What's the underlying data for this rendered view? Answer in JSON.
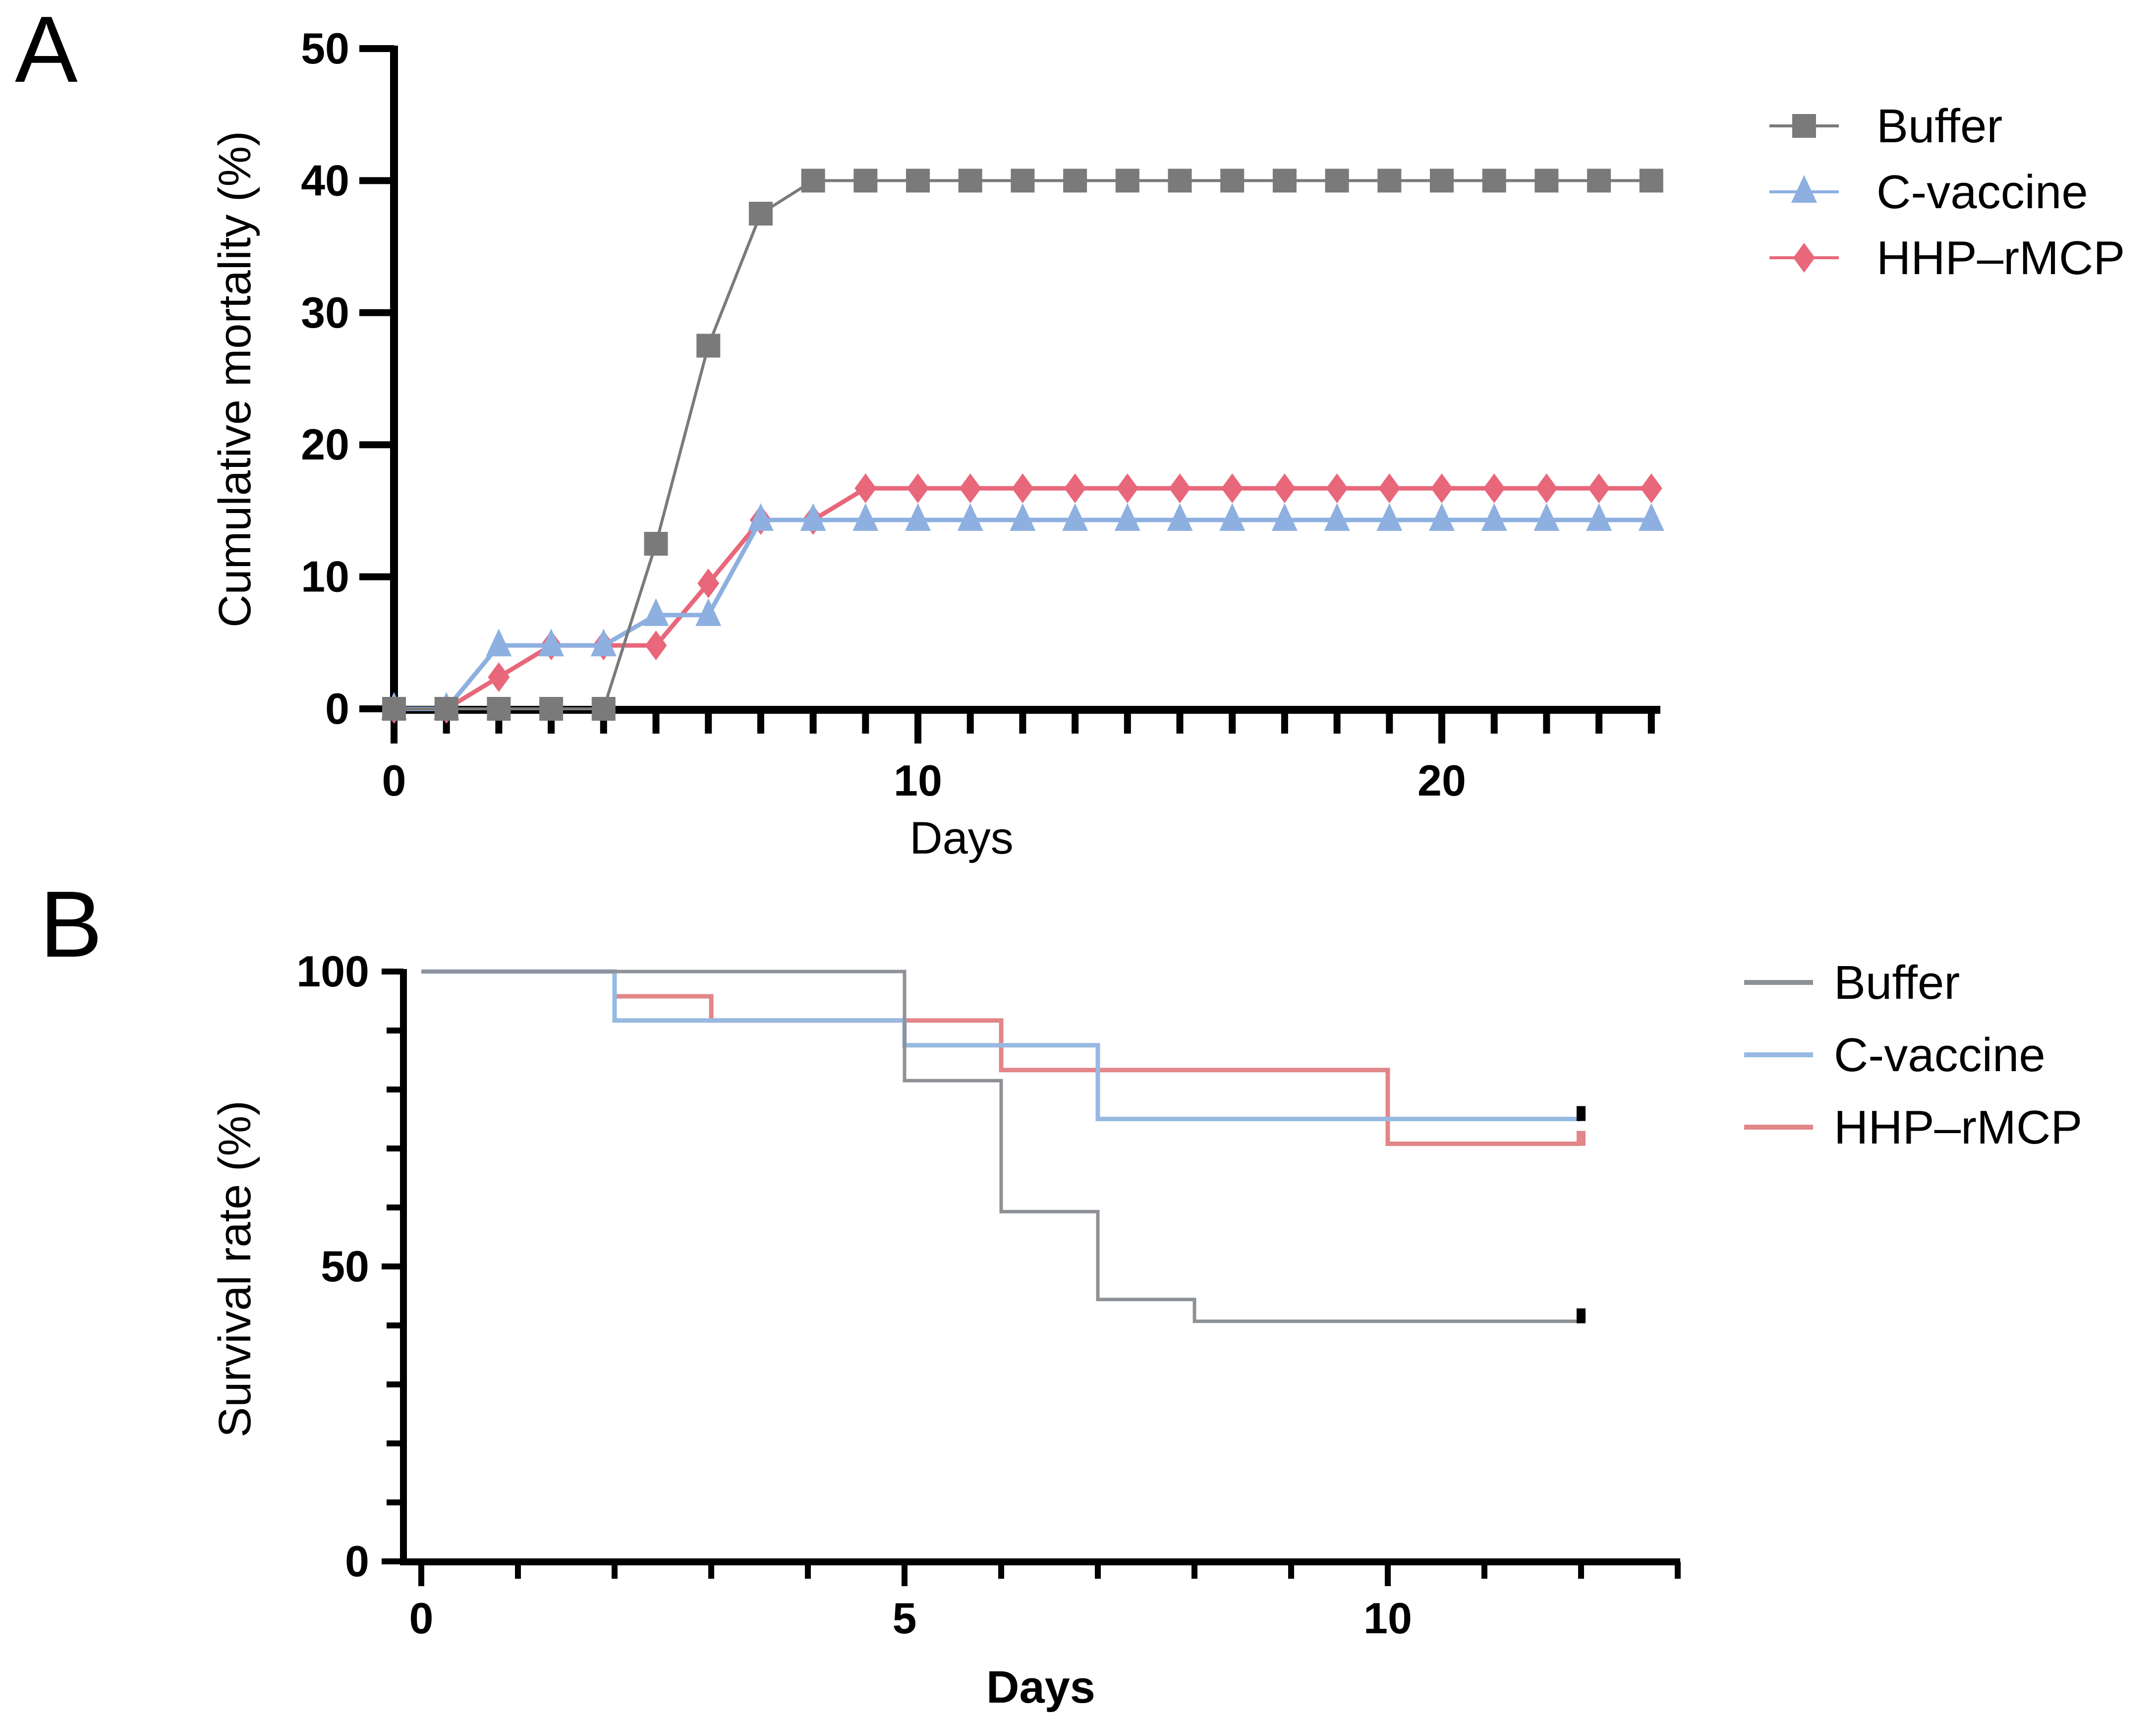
{
  "chart_data": [
    {
      "panel_label": "A",
      "type": "line",
      "xlabel": "Days",
      "ylabel": "Cumulative mortality (%)",
      "xlim": [
        0,
        24
      ],
      "ylim": [
        0,
        50
      ],
      "xticks": [
        0,
        10,
        20
      ],
      "yticks": [
        0,
        10,
        20,
        30,
        40,
        50
      ],
      "legend": "top-right",
      "x": [
        0,
        1,
        2,
        3,
        4,
        5,
        6,
        7,
        8,
        9,
        10,
        11,
        12,
        13,
        14,
        15,
        16,
        17,
        18,
        19,
        20,
        21,
        22,
        23,
        24
      ],
      "series": [
        {
          "name": "Buffer",
          "color": "#7a7a7a",
          "marker": "square",
          "values": [
            0,
            0,
            0,
            0,
            0,
            12.5,
            27.5,
            37.5,
            40,
            40,
            40,
            40,
            40,
            40,
            40,
            40,
            40,
            40,
            40,
            40,
            40,
            40,
            40,
            40,
            40
          ]
        },
        {
          "name": "C-vaccine",
          "color": "#8db0e0",
          "marker": "triangle",
          "values": [
            0,
            0,
            4.8,
            4.8,
            4.8,
            7.1,
            7.1,
            14.3,
            14.3,
            14.3,
            14.3,
            14.3,
            14.3,
            14.3,
            14.3,
            14.3,
            14.3,
            14.3,
            14.3,
            14.3,
            14.3,
            14.3,
            14.3,
            14.3,
            14.3
          ]
        },
        {
          "name": "HHP–rMCP",
          "color": "#e8677a",
          "marker": "diamond",
          "values": [
            0,
            0,
            2.4,
            4.8,
            4.8,
            4.8,
            9.5,
            14.3,
            14.3,
            16.7,
            16.7,
            16.7,
            16.7,
            16.7,
            16.7,
            16.7,
            16.7,
            16.7,
            16.7,
            16.7,
            16.7,
            16.7,
            16.7,
            16.7,
            16.7
          ]
        }
      ]
    },
    {
      "panel_label": "B",
      "type": "line",
      "style": "step",
      "xlabel": "Days",
      "ylabel": "Survival rate (%)",
      "xlim": [
        0,
        13
      ],
      "ylim": [
        0,
        100
      ],
      "xticks": [
        0,
        5,
        10
      ],
      "yticks": [
        0,
        50,
        100
      ],
      "legend": "top-right",
      "series": [
        {
          "name": "Buffer",
          "color": "#8e9296",
          "x": [
            0,
            5,
            6,
            7,
            8,
            12
          ],
          "values": [
            100,
            81.5,
            59.3,
            44.4,
            40.7,
            40.7
          ]
        },
        {
          "name": "C-vaccine",
          "color": "#97b9e2",
          "x": [
            0,
            2,
            5,
            7,
            12
          ],
          "values": [
            100,
            91.7,
            87.5,
            75,
            75
          ]
        },
        {
          "name": "HHP–rMCP",
          "color": "#e28688",
          "x": [
            0,
            2,
            3,
            6,
            10,
            12
          ],
          "values": [
            100,
            95.8,
            91.7,
            83.3,
            70.8,
            70.8
          ]
        }
      ]
    }
  ]
}
